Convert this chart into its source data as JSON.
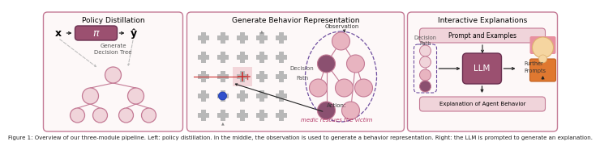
{
  "bg_color": "#ffffff",
  "panel_border_color": "#c8a8b0",
  "pink_dark": "#8b5070",
  "pink_mid": "#c47a95",
  "pink_light": "#e8b4c0",
  "pink_pale": "#f0d4da",
  "purple_dashed": "#7050a0",
  "gray_cross": "#b8b8b8",
  "orange_person": "#e07830",
  "skin_color": "#f5d5a0",
  "hair_color": "#e890a0",
  "arrow_color": "#222222",
  "title_fontsize": 6.5,
  "body_fontsize": 5.5,
  "small_fontsize": 5.0,
  "caption_fontsize": 5.0,
  "panel1_title": "Policy Distillation",
  "panel2_title": "Generate Behavior Representation",
  "panel3_title": "Interactive Explanations",
  "caption": "Figure 1: Overview of our three-module pipeline. Left: policy distillation. In the middle, the observation is used to generate a behavior representation. Right: the LLM is prompted to generate an explanation."
}
